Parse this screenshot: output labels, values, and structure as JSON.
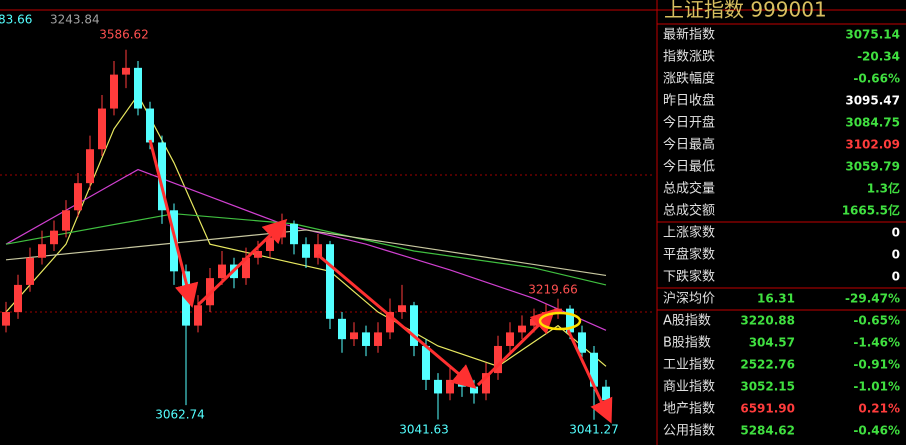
{
  "chart_data": {
    "type": "candlestick",
    "header": [
      "83.66",
      "3243.84"
    ],
    "ylim": [
      3004,
      3660
    ],
    "up_color": "#ff3c3c",
    "down_color": "#54ffff",
    "candles": [
      [
        3180,
        3215,
        3170,
        3200
      ],
      [
        3200,
        3255,
        3190,
        3240
      ],
      [
        3240,
        3295,
        3230,
        3280
      ],
      [
        3280,
        3320,
        3270,
        3300
      ],
      [
        3300,
        3335,
        3290,
        3320
      ],
      [
        3320,
        3365,
        3310,
        3350
      ],
      [
        3350,
        3405,
        3340,
        3390
      ],
      [
        3390,
        3460,
        3380,
        3440
      ],
      [
        3440,
        3520,
        3430,
        3500
      ],
      [
        3500,
        3570,
        3490,
        3550
      ],
      [
        3550,
        3586.62,
        3530,
        3560
      ],
      [
        3560,
        3570,
        3490,
        3500
      ],
      [
        3500,
        3510,
        3440,
        3450
      ],
      [
        3450,
        3460,
        3330,
        3350
      ],
      [
        3350,
        3360,
        3240,
        3260
      ],
      [
        3260,
        3270,
        3062.74,
        3180
      ],
      [
        3180,
        3225,
        3170,
        3210
      ],
      [
        3210,
        3265,
        3200,
        3250
      ],
      [
        3250,
        3290,
        3240,
        3270
      ],
      [
        3270,
        3280,
        3235,
        3250
      ],
      [
        3250,
        3295,
        3240,
        3280
      ],
      [
        3280,
        3305,
        3270,
        3290
      ],
      [
        3290,
        3325,
        3280,
        3310
      ],
      [
        3310,
        3345,
        3300,
        3330
      ],
      [
        3330,
        3335,
        3285,
        3300
      ],
      [
        3300,
        3310,
        3265,
        3280
      ],
      [
        3280,
        3315,
        3270,
        3300
      ],
      [
        3300,
        3305,
        3175,
        3190
      ],
      [
        3190,
        3200,
        3140,
        3160
      ],
      [
        3160,
        3185,
        3150,
        3170
      ],
      [
        3170,
        3180,
        3135,
        3150
      ],
      [
        3150,
        3185,
        3140,
        3170
      ],
      [
        3170,
        3220,
        3160,
        3200
      ],
      [
        3200,
        3240,
        3190,
        3210
      ],
      [
        3210,
        3215,
        3135,
        3150
      ],
      [
        3150,
        3160,
        3085,
        3100
      ],
      [
        3100,
        3110,
        3041.63,
        3080
      ],
      [
        3080,
        3120,
        3070,
        3100
      ],
      [
        3100,
        3110,
        3075,
        3090
      ],
      [
        3090,
        3100,
        3065,
        3080
      ],
      [
        3080,
        3125,
        3070,
        3110
      ],
      [
        3110,
        3165,
        3100,
        3150
      ],
      [
        3150,
        3185,
        3140,
        3170
      ],
      [
        3170,
        3195,
        3160,
        3180
      ],
      [
        3180,
        3205,
        3170,
        3190
      ],
      [
        3190,
        3212,
        3180,
        3200
      ],
      [
        3200,
        3219.66,
        3190,
        3205
      ],
      [
        3205,
        3210,
        3160,
        3170
      ],
      [
        3170,
        3180,
        3125,
        3140
      ],
      [
        3140,
        3150,
        3041.27,
        3090
      ],
      [
        3090,
        3100,
        3055,
        3070
      ]
    ],
    "series": [
      {
        "color": "#e8e860",
        "x": [
          0,
          5,
          9,
          11,
          14,
          17,
          22,
          27,
          31,
          36,
          41,
          46,
          50
        ],
        "values": [
          3200,
          3300,
          3470,
          3520,
          3420,
          3300,
          3280,
          3260,
          3200,
          3150,
          3120,
          3180,
          3120
        ]
      },
      {
        "color": "#d040d0",
        "x": [
          0,
          6,
          11,
          17,
          23,
          30,
          37,
          44,
          50
        ],
        "values": [
          3300,
          3360,
          3410,
          3370,
          3330,
          3300,
          3262,
          3220,
          3173
        ]
      },
      {
        "color": "#40c040",
        "x": [
          0,
          14,
          24,
          34,
          44,
          50
        ],
        "values": [
          3300,
          3345,
          3330,
          3290,
          3265,
          3240
        ]
      },
      {
        "color": "#c8c8a0",
        "x": [
          0,
          25,
          50
        ],
        "values": [
          3277,
          3321,
          3254
        ]
      }
    ],
    "annotations": [
      3586.62,
      3062.74,
      3041.63,
      3219.66,
      3041.27
    ]
  },
  "panel": {
    "title": "上证指数  999001",
    "rows": [
      {
        "label": "最新指数",
        "value": "3075.14",
        "color": "#40e040"
      },
      {
        "label": "指数涨跌",
        "value": "-20.34",
        "color": "#40e040"
      },
      {
        "label": "涨跌幅度",
        "value": "-0.66%",
        "color": "#40e040"
      },
      {
        "label": "昨日收盘",
        "value": "3095.47",
        "color": "#ffffff"
      },
      {
        "label": "今日开盘",
        "value": "3084.75",
        "color": "#40e040"
      },
      {
        "label": "今日最高",
        "value": "3102.09",
        "color": "#ff3c3c"
      },
      {
        "label": "今日最低",
        "value": "3059.79",
        "color": "#40e040"
      },
      {
        "label": "总成交量",
        "value": "1.3亿",
        "color": "#40e040"
      },
      {
        "label": "总成交额",
        "value": "1665.5亿",
        "color": "#40e040"
      },
      {
        "label": "上涨家数",
        "value": "0",
        "color": "#ffffff"
      },
      {
        "label": "平盘家数",
        "value": "0",
        "color": "#ffffff"
      },
      {
        "label": "下跌家数",
        "value": "0",
        "color": "#ffffff"
      },
      {
        "label": "沪深均价",
        "value": "16.31",
        "change": "-29.47%",
        "color": "#40e040"
      },
      {
        "label": "A股指数",
        "value": "3220.88",
        "change": "-0.65%",
        "color": "#40e040"
      },
      {
        "label": "B股指数",
        "value": "304.57",
        "change": "-1.46%",
        "color": "#40e040"
      },
      {
        "label": "工业指数",
        "value": "2522.76",
        "change": "-0.91%",
        "color": "#40e040"
      },
      {
        "label": "商业指数",
        "value": "3052.15",
        "change": "-1.01%",
        "color": "#40e040"
      },
      {
        "label": "地产指数",
        "value": "6591.90",
        "change": "0.21%",
        "color": "#ff3c3c"
      },
      {
        "label": "公用指数",
        "value": "5284.62",
        "change": "-0.46%",
        "color": "#40e040"
      }
    ]
  }
}
